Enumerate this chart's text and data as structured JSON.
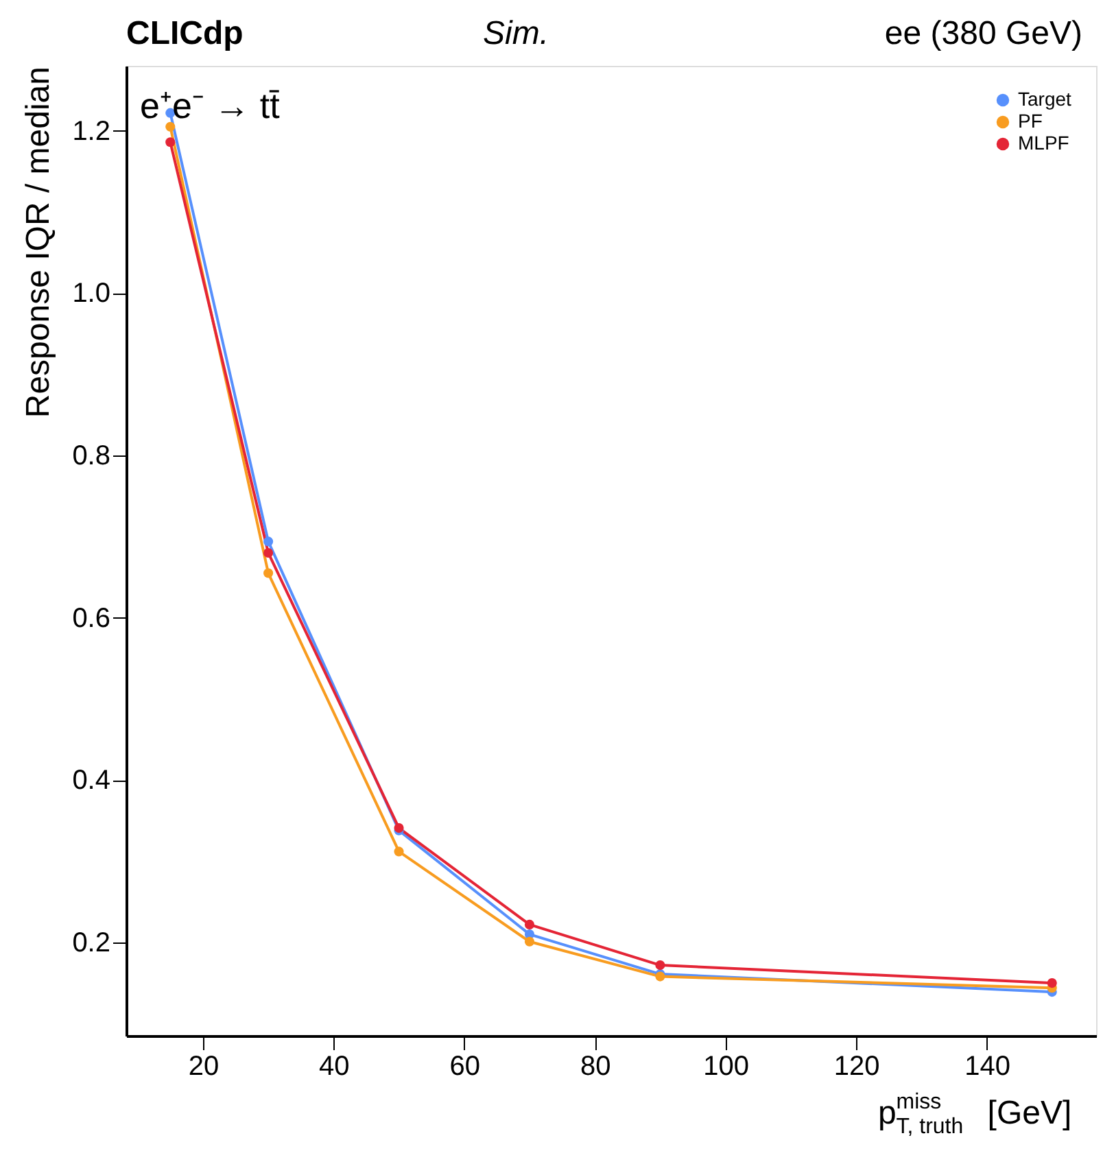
{
  "chart_data": {
    "type": "line",
    "title": "CLICdp",
    "annotations": [
      "Sim.",
      "ee (380 GeV)",
      "e⁺e⁻ → tt̄"
    ],
    "xlabel": "p$^{miss}$$_{T, truth}$ [GeV]",
    "ylabel": "Response IQR / median",
    "x": [
      15,
      30,
      50,
      70,
      90,
      150
    ],
    "series": [
      {
        "name": "Target",
        "color": "#5790fc",
        "values": [
          1.222,
          0.694,
          0.338,
          0.21,
          0.161,
          0.139
        ]
      },
      {
        "name": "PF",
        "color": "#f89c20",
        "values": [
          1.205,
          0.655,
          0.312,
          0.201,
          0.158,
          0.144
        ]
      },
      {
        "name": "MLPF",
        "color": "#e42536",
        "values": [
          1.186,
          0.68,
          0.341,
          0.222,
          0.172,
          0.15
        ]
      }
    ],
    "xlim": [
      8.25,
      156.75
    ],
    "ylim": [
      0.085,
      1.28
    ],
    "xticks": [
      20,
      40,
      60,
      80,
      100,
      120,
      140
    ],
    "yticks": [
      {
        "value": 0.2,
        "label": "0.2"
      },
      {
        "value": 0.4,
        "label": "0.4"
      },
      {
        "value": 0.6,
        "label": "0.6"
      },
      {
        "value": 0.8,
        "label": "0.8"
      },
      {
        "value": 1.0,
        "label": "1.0"
      },
      {
        "value": 1.2,
        "label": "1.2"
      }
    ],
    "marker": "circle",
    "line_style": "solid",
    "legend": "top right",
    "grid": false
  }
}
